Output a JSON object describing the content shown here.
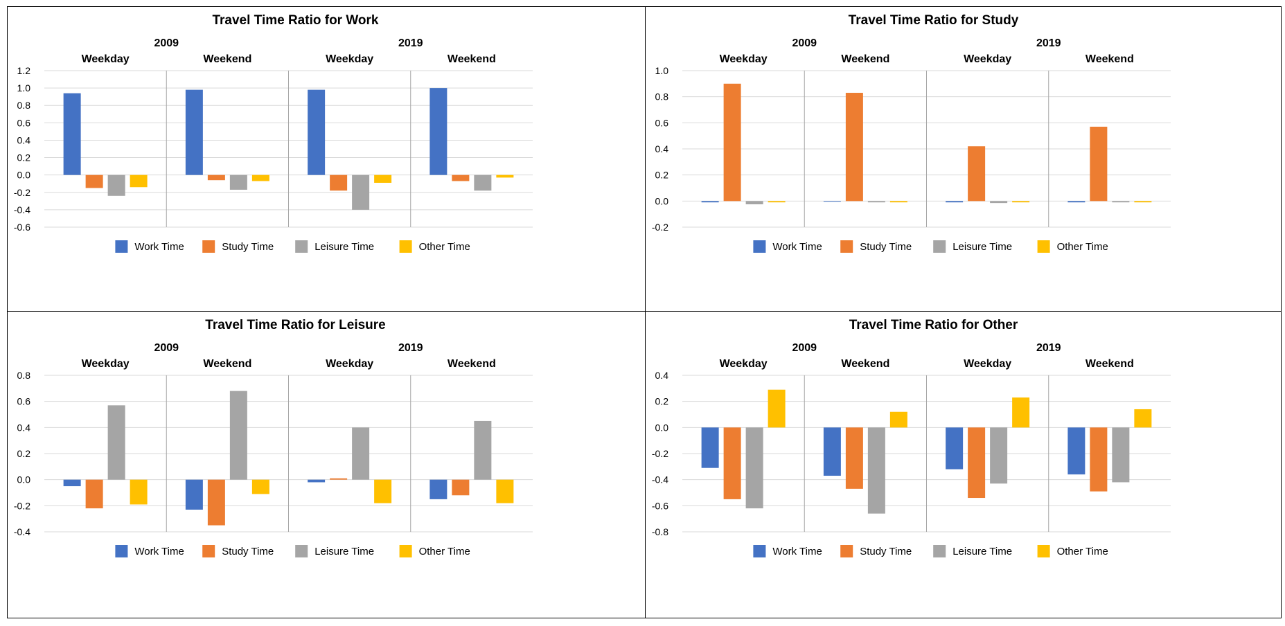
{
  "chart_data": [
    {
      "type": "bar",
      "title": "Travel Time Ratio  for Work",
      "years": [
        "2009",
        "2019"
      ],
      "day_types": [
        "Weekday",
        "Weekend"
      ],
      "groups": [
        "2009 Weekday",
        "2009 Weekend",
        "2019 Weekday",
        "2019 Weekend"
      ],
      "ylim": [
        -0.6,
        1.2
      ],
      "yticks": [
        1.2,
        1.0,
        0.8,
        0.6,
        0.4,
        0.2,
        0.0,
        -0.2,
        -0.4,
        -0.6
      ],
      "grid": true,
      "legend_position": "bottom",
      "series": [
        {
          "name": "Work Time",
          "color": "#4472C4",
          "values": [
            0.94,
            0.98,
            0.98,
            1.0
          ]
        },
        {
          "name": "Study Time",
          "color": "#ED7D31",
          "values": [
            -0.15,
            -0.06,
            -0.18,
            -0.07
          ]
        },
        {
          "name": "Leisure Time",
          "color": "#A5A5A5",
          "values": [
            -0.24,
            -0.17,
            -0.4,
            -0.18
          ]
        },
        {
          "name": "Other Time",
          "color": "#FFC000",
          "values": [
            -0.14,
            -0.07,
            -0.09,
            -0.03
          ]
        }
      ]
    },
    {
      "type": "bar",
      "title": "Travel Time Ratio  for Study",
      "years": [
        "2009",
        "2019"
      ],
      "day_types": [
        "Weekday",
        "Weekend"
      ],
      "groups": [
        "2009 Weekday",
        "2009 Weekend",
        "2019 Weekday",
        "2019 Weekend"
      ],
      "ylim": [
        -0.2,
        1.0
      ],
      "yticks": [
        1.0,
        0.8,
        0.6,
        0.4,
        0.2,
        0.0,
        -0.2
      ],
      "grid": true,
      "legend_position": "bottom",
      "series": [
        {
          "name": "Work Time",
          "color": "#4472C4",
          "values": [
            -0.01,
            -0.005,
            -0.01,
            -0.01
          ]
        },
        {
          "name": "Study Time",
          "color": "#ED7D31",
          "values": [
            0.9,
            0.83,
            0.42,
            0.57
          ]
        },
        {
          "name": "Leisure Time",
          "color": "#A5A5A5",
          "values": [
            -0.025,
            -0.01,
            -0.015,
            -0.01
          ]
        },
        {
          "name": "Other Time",
          "color": "#FFC000",
          "values": [
            -0.01,
            -0.01,
            -0.01,
            -0.01
          ]
        }
      ]
    },
    {
      "type": "bar",
      "title": "Travel Time Ratio  for Leisure",
      "years": [
        "2009",
        "2019"
      ],
      "day_types": [
        "Weekday",
        "Weekend"
      ],
      "groups": [
        "2009 Weekday",
        "2009 Weekend",
        "2019 Weekday",
        "2019 Weekend"
      ],
      "ylim": [
        -0.4,
        0.8
      ],
      "yticks": [
        0.8,
        0.6,
        0.4,
        0.2,
        0.0,
        -0.2,
        -0.4
      ],
      "grid": true,
      "legend_position": "bottom",
      "series": [
        {
          "name": "Work Time",
          "color": "#4472C4",
          "values": [
            -0.05,
            -0.23,
            -0.02,
            -0.15
          ]
        },
        {
          "name": "Study Time",
          "color": "#ED7D31",
          "values": [
            -0.22,
            -0.35,
            0.01,
            -0.12
          ]
        },
        {
          "name": "Leisure Time",
          "color": "#A5A5A5",
          "values": [
            0.57,
            0.68,
            0.4,
            0.45
          ]
        },
        {
          "name": "Other Time",
          "color": "#FFC000",
          "values": [
            -0.19,
            -0.11,
            -0.18,
            -0.18
          ]
        }
      ]
    },
    {
      "type": "bar",
      "title": "Travel Time Ratio  for Other",
      "years": [
        "2009",
        "2019"
      ],
      "day_types": [
        "Weekday",
        "Weekend"
      ],
      "groups": [
        "2009 Weekday",
        "2009 Weekend",
        "2019 Weekday",
        "2019 Weekend"
      ],
      "ylim": [
        -0.8,
        0.4
      ],
      "yticks": [
        0.4,
        0.2,
        0.0,
        -0.2,
        -0.4,
        -0.6,
        -0.8
      ],
      "grid": true,
      "legend_position": "bottom",
      "series": [
        {
          "name": "Work Time",
          "color": "#4472C4",
          "values": [
            -0.31,
            -0.37,
            -0.32,
            -0.36
          ]
        },
        {
          "name": "Study Time",
          "color": "#ED7D31",
          "values": [
            -0.55,
            -0.47,
            -0.54,
            -0.49
          ]
        },
        {
          "name": "Leisure Time",
          "color": "#A5A5A5",
          "values": [
            -0.62,
            -0.66,
            -0.43,
            -0.42
          ]
        },
        {
          "name": "Other Time",
          "color": "#FFC000",
          "values": [
            0.29,
            0.12,
            0.23,
            0.14
          ]
        }
      ]
    }
  ]
}
